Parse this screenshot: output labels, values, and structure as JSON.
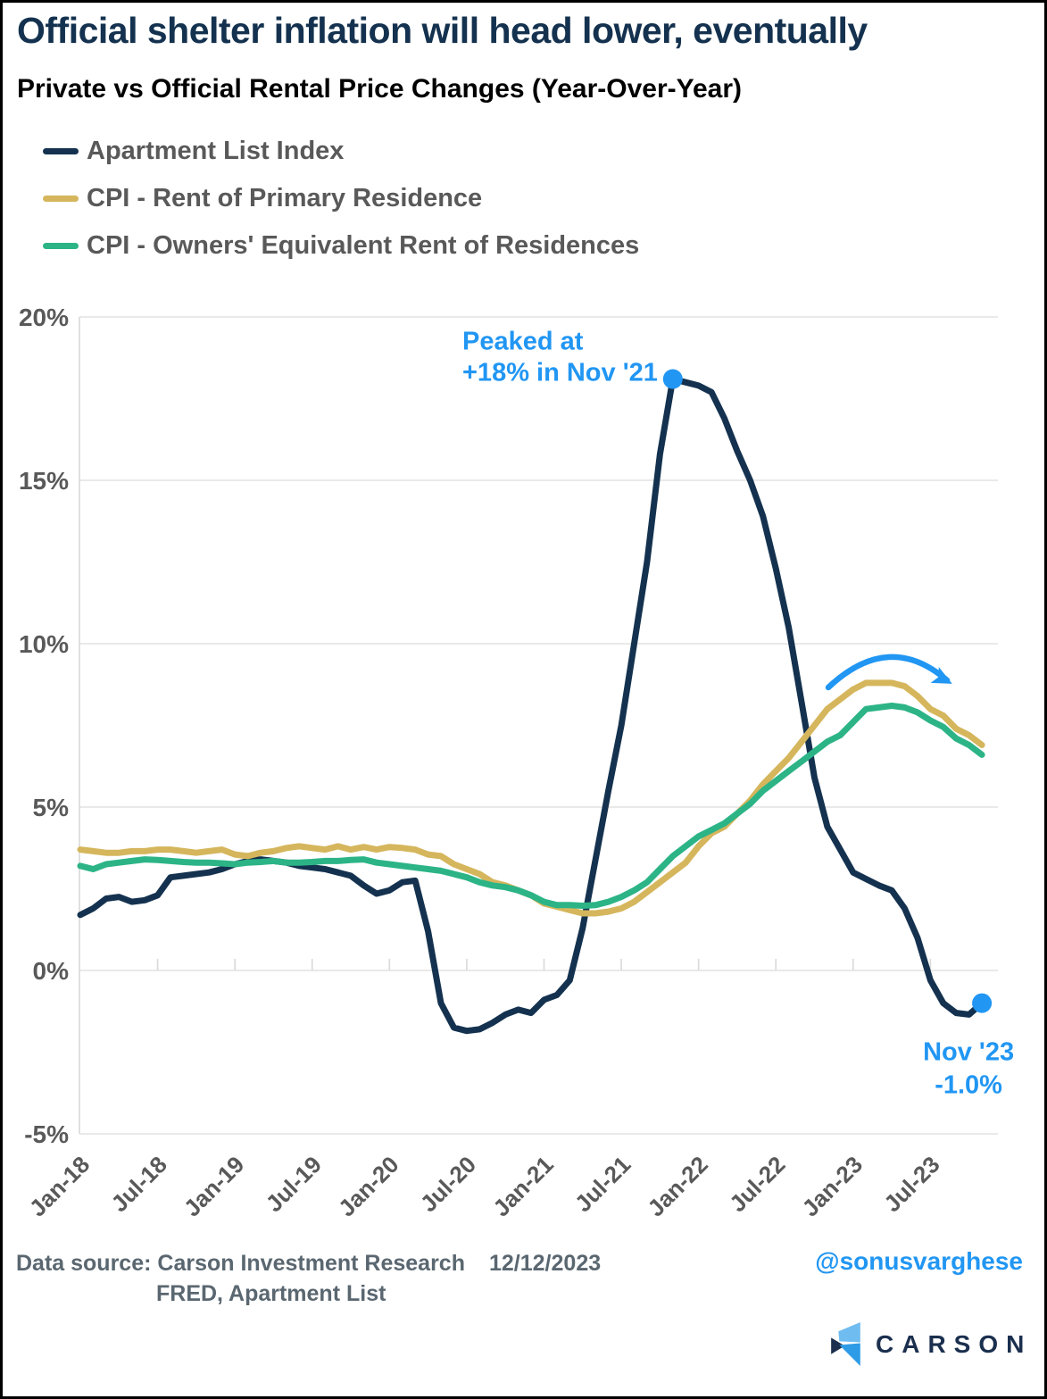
{
  "header": {
    "title": "Official shelter inflation will head lower, eventually",
    "subtitle": "Private vs Official Rental Price Changes (Year-Over-Year)"
  },
  "chart_data": {
    "type": "line",
    "title": "Private vs Official Rental Price Changes (Year-Over-Year)",
    "x_unit": "month",
    "x_start": "Jan-18",
    "x_end": "Nov-23",
    "x_tick_labels": [
      "Jan-18",
      "Jul-18",
      "Jan-19",
      "Jul-19",
      "Jan-20",
      "Jul-20",
      "Jan-21",
      "Jul-21",
      "Jan-22",
      "Jul-22",
      "Jan-23",
      "Jul-23"
    ],
    "y_tick_labels": [
      "20%",
      "15%",
      "10%",
      "5%",
      "0%",
      "-5%"
    ],
    "y_tick_values": [
      20,
      15,
      10,
      5,
      0,
      -5
    ],
    "ylim": [
      -5,
      20
    ],
    "grid": "horizontal",
    "legend_position": "top-left",
    "colors": {
      "grid": "#E2E2E2",
      "axis": "#D9D9D9",
      "axis_text": "#595959",
      "annotation": "#2196F3"
    },
    "series": [
      {
        "name": "Apartment List Index",
        "color": "#14324F",
        "values": [
          1.7,
          1.9,
          2.2,
          2.25,
          2.1,
          2.15,
          2.3,
          2.85,
          2.9,
          2.95,
          3.0,
          3.1,
          3.25,
          3.35,
          3.4,
          3.35,
          3.3,
          3.2,
          3.15,
          3.1,
          3.0,
          2.9,
          2.6,
          2.35,
          2.45,
          2.7,
          2.75,
          1.2,
          -1.0,
          -1.75,
          -1.85,
          -1.8,
          -1.6,
          -1.35,
          -1.2,
          -1.3,
          -0.9,
          -0.75,
          -0.3,
          1.3,
          3.4,
          5.5,
          7.5,
          10.0,
          12.5,
          15.8,
          18.1,
          18.0,
          17.9,
          17.7,
          16.9,
          15.9,
          15.0,
          13.9,
          12.3,
          10.5,
          8.2,
          5.9,
          4.4,
          3.7,
          3.0,
          2.8,
          2.6,
          2.45,
          1.9,
          1.0,
          -0.3,
          -1.0,
          -1.3,
          -1.35,
          -1.0
        ]
      },
      {
        "name": "CPI - Rent of Primary Residence",
        "color": "#D5B65C",
        "values": [
          3.7,
          3.65,
          3.6,
          3.6,
          3.65,
          3.65,
          3.7,
          3.7,
          3.65,
          3.6,
          3.65,
          3.7,
          3.55,
          3.5,
          3.6,
          3.65,
          3.75,
          3.8,
          3.75,
          3.7,
          3.8,
          3.7,
          3.78,
          3.7,
          3.78,
          3.75,
          3.7,
          3.55,
          3.5,
          3.25,
          3.1,
          2.95,
          2.7,
          2.6,
          2.45,
          2.3,
          2.05,
          1.95,
          1.85,
          1.75,
          1.75,
          1.8,
          1.9,
          2.1,
          2.4,
          2.7,
          3.0,
          3.3,
          3.8,
          4.2,
          4.4,
          4.8,
          5.2,
          5.7,
          6.1,
          6.5,
          7.0,
          7.5,
          8.0,
          8.3,
          8.6,
          8.8,
          8.8,
          8.8,
          8.7,
          8.4,
          8.0,
          7.8,
          7.4,
          7.2,
          6.9
        ]
      },
      {
        "name": "CPI - Owners' Equivalent Rent of Residences",
        "color": "#2CB487",
        "values": [
          3.2,
          3.1,
          3.25,
          3.3,
          3.35,
          3.4,
          3.38,
          3.35,
          3.32,
          3.3,
          3.3,
          3.28,
          3.25,
          3.3,
          3.32,
          3.35,
          3.3,
          3.3,
          3.32,
          3.35,
          3.35,
          3.38,
          3.4,
          3.3,
          3.25,
          3.2,
          3.15,
          3.1,
          3.05,
          2.95,
          2.85,
          2.7,
          2.6,
          2.55,
          2.45,
          2.3,
          2.1,
          2.0,
          2.0,
          1.98,
          2.0,
          2.1,
          2.25,
          2.45,
          2.7,
          3.1,
          3.5,
          3.8,
          4.1,
          4.3,
          4.5,
          4.8,
          5.1,
          5.5,
          5.8,
          6.1,
          6.4,
          6.7,
          7.0,
          7.2,
          7.6,
          8.0,
          8.05,
          8.1,
          8.05,
          7.9,
          7.65,
          7.45,
          7.1,
          6.9,
          6.6
        ]
      }
    ],
    "annotations": {
      "peak": {
        "text_lines": [
          "Peaked at",
          "+18% in Nov '21"
        ],
        "month_index": 46,
        "value": 18.1,
        "color": "#2196F3"
      },
      "latest": {
        "text_lines": [
          "Nov '23",
          "-1.0%"
        ],
        "month_index": 70,
        "value": -1.0,
        "color": "#2196F3"
      },
      "arrow": {
        "meaning": "official CPI rent measures rolling over",
        "color": "#2196F3"
      }
    }
  },
  "footer": {
    "source_line1": "Data source: Carson Investment Research",
    "source_line2": "FRED, Apartment List",
    "date": "12/12/2023",
    "handle": "@sonusvarghese",
    "brand": "CARSON"
  }
}
